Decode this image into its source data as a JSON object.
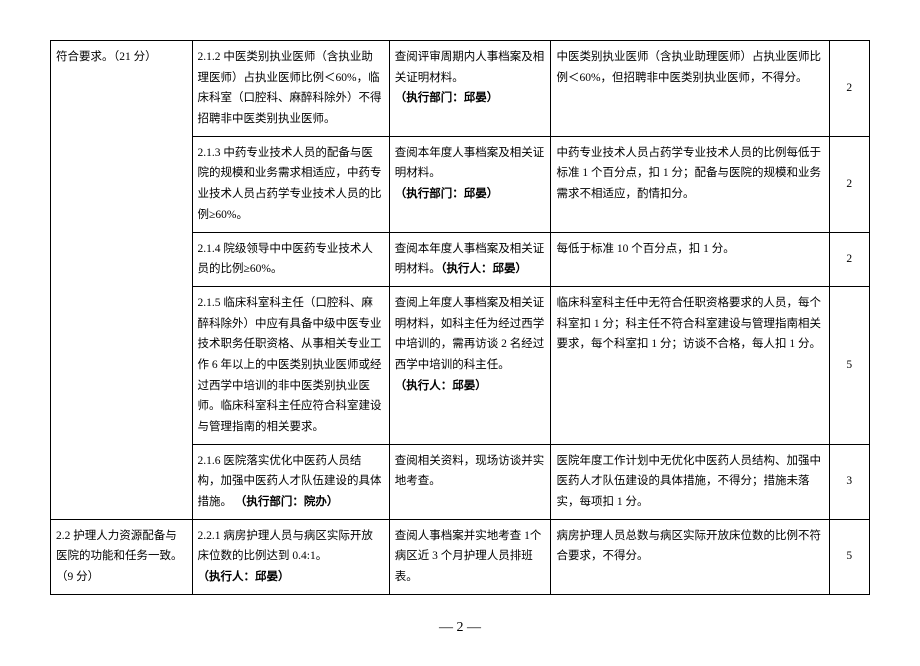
{
  "table": {
    "col1_group1": "符合要求。（21 分）",
    "col1_group2": "2.2 护理人力资源配备与医院的功能和任务一致。（9 分）",
    "rows": [
      {
        "c2": "2.1.2 中医类别执业医师（含执业助理医师）占执业医师比例＜60%，临床科室（口腔科、麻醉科除外）不得招聘非中医类别执业医师。",
        "c3_pre": "查阅评审周期内人事档案及相关证明材料。",
        "c3_bold": "（执行部门：邱晏）",
        "c4": "中医类别执业医师（含执业助理医师）占执业医师比例＜60%，但招聘非中医类别执业医师，不得分。",
        "c5": "2"
      },
      {
        "c2": "2.1.3 中药专业技术人员的配备与医院的规模和业务需求相适应，中药专业技术人员占药学专业技术人员的比例≥60%。",
        "c3_pre": "查阅本年度人事档案及相关证明材料。",
        "c3_bold": "（执行部门：邱晏）",
        "c4": "中药专业技术人员占药学专业技术人员的比例每低于标准 1 个百分点，扣 1 分；配备与医院的规模和业务需求不相适应，酌情扣分。",
        "c5": "2"
      },
      {
        "c2": "2.1.4 院级领导中中医药专业技术人员的比例≥60%。",
        "c3_pre": "查阅本年度人事档案及相关证明材料。",
        "c3_bold": "（执行人：邱晏）",
        "c4": "每低于标准 10 个百分点，扣 1 分。",
        "c5": "2"
      },
      {
        "c2": "2.1.5 临床科室科主任（口腔科、麻醉科除外）中应有具备中级中医专业技术职务任职资格、从事相关专业工作 6 年以上的中医类别执业医师或经过西学中培训的非中医类别执业医师。临床科室科主任应符合科室建设与管理指南的相关要求。",
        "c3_pre": "查阅上年度人事档案及相关证明材料，如科主任为经过西学中培训的，需再访谈 2 名经过西学中培训的科主任。",
        "c3_bold": "（执行人：邱晏）",
        "c4": "临床科室科主任中无符合任职资格要求的人员，每个科室扣 1 分；科主任不符合科室建设与管理指南相关要求，每个科室扣 1 分；访谈不合格，每人扣 1 分。",
        "c5": "5"
      },
      {
        "c2_pre": "2.1.6 医院落实优化中医药人员结构，加强中医药人才队伍建设的具体措施。",
        "c2_bold": "（执行部门：院办）",
        "c3": "查阅相关资料，现场访谈并实地考查。",
        "c4": "医院年度工作计划中无优化中医药人员结构、加强中医药人才队伍建设的具体措施，不得分；措施未落实，每项扣 1 分。",
        "c5": "3"
      },
      {
        "c2_pre": "2.2.1 病房护理人员与病区实际开放床位数的比例达到 0.4:1。",
        "c2_bold": "（执行人：邱晏）",
        "c3": "查阅人事档案并实地考查 1个病区近 3 个月护理人员排班表。",
        "c4": "病房护理人员总数与病区实际开放床位数的比例不符合要求，不得分。",
        "c5": "5"
      }
    ]
  },
  "page_number": "— 2 —"
}
